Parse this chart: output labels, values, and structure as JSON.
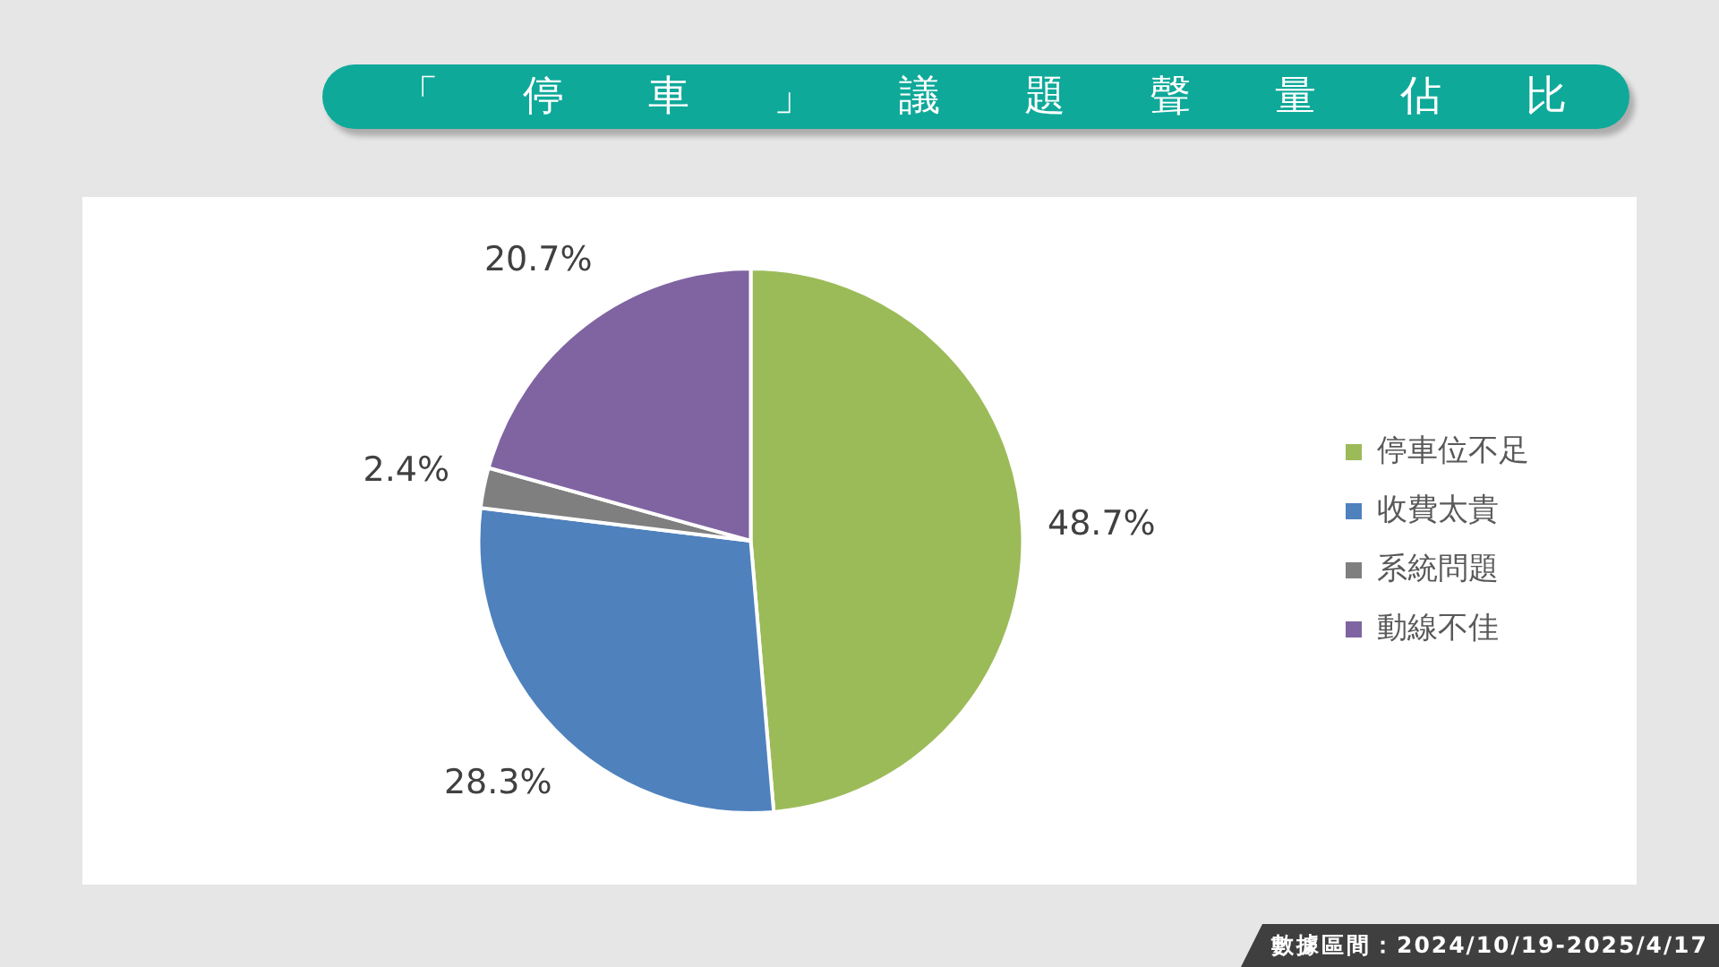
{
  "chart_data": {
    "type": "pie",
    "title": "「停車」議題聲量佔比",
    "categories": [
      "停車位不足",
      "收費太貴",
      "系統問題",
      "動線不佳"
    ],
    "values": [
      48.7,
      28.3,
      2.4,
      20.7
    ],
    "colors": [
      "#9bbb59",
      "#4f81bd",
      "#7f7f7f",
      "#8064a2"
    ],
    "value_labels": [
      "48.7%",
      "28.3%",
      "2.4%",
      "20.7%"
    ],
    "legend": "right",
    "annotations": [
      "數據區間：2024/10/19-2025/4/17"
    ]
  }
}
